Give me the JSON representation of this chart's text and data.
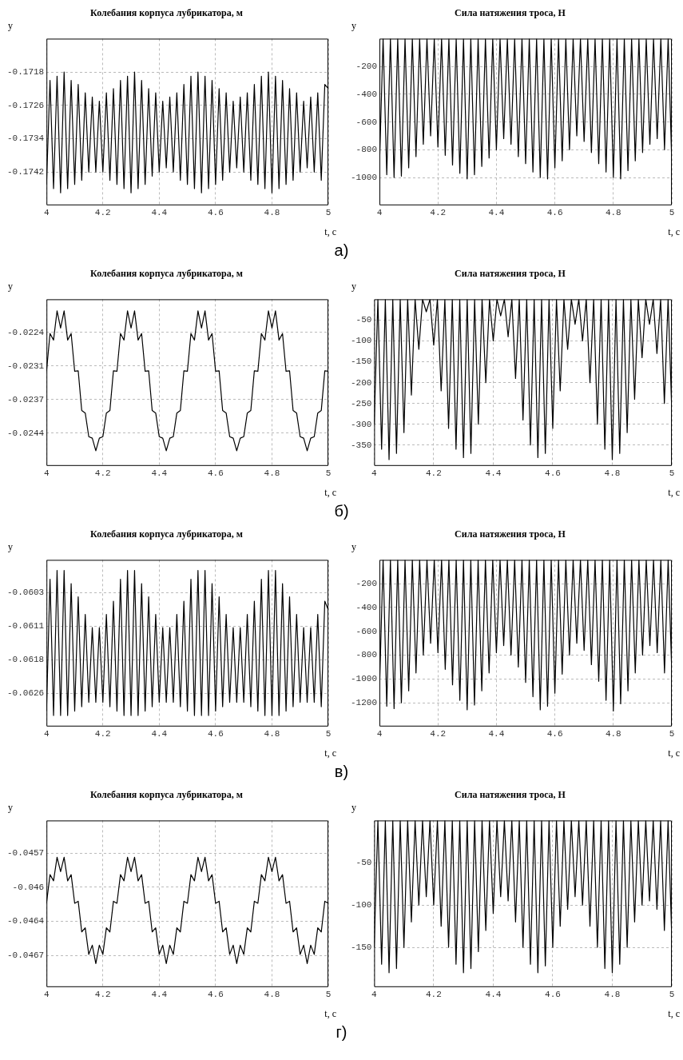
{
  "chart_data": [
    {
      "type": "line",
      "title": "Колебания корпуса лубрикатора, м",
      "xlabel": "t, с",
      "ylabel": "y",
      "annotations": [
        "а)"
      ],
      "grid": true,
      "x": [
        4,
        4.0125,
        4.025,
        4.0375,
        4.05,
        4.0625,
        4.075,
        4.0875,
        4.1,
        4.1125,
        4.125,
        4.1375,
        4.15,
        4.1625,
        4.175,
        4.1875,
        4.2,
        4.2125,
        4.225,
        4.2375,
        4.25,
        4.2625,
        4.275,
        4.2875,
        4.3,
        4.3125,
        4.325,
        4.3375,
        4.35,
        4.3625,
        4.375,
        4.3875,
        4.4,
        4.4125,
        4.425,
        4.4375,
        4.45,
        4.4625,
        4.475,
        4.4875,
        4.5,
        4.5125,
        4.525,
        4.5375,
        4.55,
        4.5625,
        4.575,
        4.5875,
        4.6,
        4.6125,
        4.625,
        4.6375,
        4.65,
        4.6625,
        4.675,
        4.6875,
        4.7,
        4.7125,
        4.725,
        4.7375,
        4.75,
        4.7625,
        4.775,
        4.7875,
        4.8,
        4.8125,
        4.825,
        4.8375,
        4.85,
        4.8625,
        4.875,
        4.8875,
        4.9,
        4.9125,
        4.925,
        4.9375,
        4.95,
        4.9625,
        4.975,
        4.9875,
        5
      ],
      "xlim": [
        4,
        5
      ],
      "xticks": [
        4,
        4.2,
        4.4,
        4.6,
        4.8,
        5
      ],
      "ylim": [
        -0.175,
        -0.171
      ],
      "yticks": [
        -0.1742,
        -0.1734,
        -0.1726,
        -0.1718
      ],
      "series": [
        {
          "color": "#000000",
          "values": [
            -0.1745,
            -0.172,
            -0.1746,
            -0.1719,
            -0.1747,
            -0.1718,
            -0.1746,
            -0.172,
            -0.1745,
            -0.1721,
            -0.1744,
            -0.1723,
            -0.1742,
            -0.1724,
            -0.1742,
            -0.1725,
            -0.1742,
            -0.1723,
            -0.1744,
            -0.1722,
            -0.1745,
            -0.172,
            -0.1746,
            -0.1719,
            -0.1747,
            -0.1718,
            -0.1746,
            -0.172,
            -0.1745,
            -0.1722,
            -0.1743,
            -0.1723,
            -0.1742,
            -0.1725,
            -0.1741,
            -0.1724,
            -0.1742,
            -0.1723,
            -0.1744,
            -0.1721,
            -0.1745,
            -0.1719,
            -0.1746,
            -0.1718,
            -0.1747,
            -0.1719,
            -0.1746,
            -0.172,
            -0.1745,
            -0.1722,
            -0.1744,
            -0.1723,
            -0.1742,
            -0.1725,
            -0.1741,
            -0.1724,
            -0.1742,
            -0.1723,
            -0.1744,
            -0.1721,
            -0.1745,
            -0.1719,
            -0.1746,
            -0.1718,
            -0.1747,
            -0.1719,
            -0.1746,
            -0.172,
            -0.1745,
            -0.1722,
            -0.1744,
            -0.1723,
            -0.1742,
            -0.1725,
            -0.1741,
            -0.1724,
            -0.1742,
            -0.1723,
            -0.1744,
            -0.1721,
            -0.1722
          ]
        }
      ]
    },
    {
      "type": "line",
      "title": "Сила натяжения троса, Н",
      "xlabel": "t, с",
      "ylabel": "y",
      "grid": true,
      "x": [
        4,
        4.0125,
        4.025,
        4.0375,
        4.05,
        4.0625,
        4.075,
        4.0875,
        4.1,
        4.1125,
        4.125,
        4.1375,
        4.15,
        4.1625,
        4.175,
        4.1875,
        4.2,
        4.2125,
        4.225,
        4.2375,
        4.25,
        4.2625,
        4.275,
        4.2875,
        4.3,
        4.3125,
        4.325,
        4.3375,
        4.35,
        4.3625,
        4.375,
        4.3875,
        4.4,
        4.4125,
        4.425,
        4.4375,
        4.45,
        4.4625,
        4.475,
        4.4875,
        4.5,
        4.5125,
        4.525,
        4.5375,
        4.55,
        4.5625,
        4.575,
        4.5875,
        4.6,
        4.6125,
        4.625,
        4.6375,
        4.65,
        4.6625,
        4.675,
        4.6875,
        4.7,
        4.7125,
        4.725,
        4.7375,
        4.75,
        4.7625,
        4.775,
        4.7875,
        4.8,
        4.8125,
        4.825,
        4.8375,
        4.85,
        4.8625,
        4.875,
        4.8875,
        4.9,
        4.9125,
        4.925,
        4.9375,
        4.95,
        4.9625,
        4.975,
        4.9875,
        5
      ],
      "xlim": [
        4,
        5
      ],
      "xticks": [
        4,
        4.2,
        4.4,
        4.6,
        4.8,
        5
      ],
      "ylim": [
        -1200,
        0
      ],
      "yticks": [
        -1000,
        -800,
        -600,
        -400,
        -200
      ],
      "series": [
        {
          "color": "#000000",
          "values": [
            -920,
            0,
            -980,
            0,
            -1000,
            0,
            -990,
            0,
            -930,
            0,
            -850,
            0,
            -760,
            0,
            -700,
            0,
            -780,
            0,
            -840,
            0,
            -910,
            0,
            -970,
            0,
            -1010,
            0,
            -980,
            0,
            -920,
            0,
            -860,
            0,
            -800,
            0,
            -720,
            0,
            -760,
            0,
            -850,
            0,
            -900,
            0,
            -960,
            0,
            -1000,
            0,
            -1010,
            0,
            -930,
            0,
            -880,
            0,
            -800,
            0,
            -700,
            0,
            -740,
            0,
            -820,
            0,
            -900,
            0,
            -960,
            0,
            -1000,
            0,
            -1010,
            0,
            -950,
            0,
            -880,
            0,
            -820,
            0,
            -760,
            0,
            -720,
            0,
            -800,
            0,
            -900
          ]
        }
      ]
    },
    {
      "type": "line",
      "title": "Колебания корпуса лубрикатора, м",
      "xlabel": "t, с",
      "ylabel": "y",
      "annotations": [
        "б)"
      ],
      "grid": true,
      "x": [
        4,
        4.0125,
        4.025,
        4.0375,
        4.05,
        4.0625,
        4.075,
        4.0875,
        4.1,
        4.1125,
        4.125,
        4.1375,
        4.15,
        4.1625,
        4.175,
        4.1875,
        4.2,
        4.2125,
        4.225,
        4.2375,
        4.25,
        4.2625,
        4.275,
        4.2875,
        4.3,
        4.3125,
        4.325,
        4.3375,
        4.35,
        4.3625,
        4.375,
        4.3875,
        4.4,
        4.4125,
        4.425,
        4.4375,
        4.45,
        4.4625,
        4.475,
        4.4875,
        4.5,
        4.5125,
        4.525,
        4.5375,
        4.55,
        4.5625,
        4.575,
        4.5875,
        4.6,
        4.6125,
        4.625,
        4.6375,
        4.65,
        4.6625,
        4.675,
        4.6875,
        4.7,
        4.7125,
        4.725,
        4.7375,
        4.75,
        4.7625,
        4.775,
        4.7875,
        4.8,
        4.8125,
        4.825,
        4.8375,
        4.85,
        4.8625,
        4.875,
        4.8875,
        4.9,
        4.9125,
        4.925,
        4.9375,
        4.95,
        4.9625,
        4.975,
        4.9875,
        5
      ],
      "xlim": [
        4,
        5
      ],
      "xticks": [
        4,
        4.2,
        4.4,
        4.6,
        4.8,
        5
      ],
      "ylim": [
        -0.02505,
        -0.02174
      ],
      "yticks": [
        {
          "value": -0.0244,
          "label": "-0.0244"
        },
        {
          "value": -0.023733,
          "label": "-0.0237"
        },
        {
          "value": -0.023067,
          "label": "-0.0231"
        },
        {
          "value": -0.0224,
          "label": "-0.0224"
        }
      ],
      "series": [
        {
          "color": "#000000",
          "values": [
            -0.02317,
            -0.02242,
            -0.02255,
            -0.02197,
            -0.02231,
            -0.02197,
            -0.02255,
            -0.02242,
            -0.02317,
            -0.02316,
            -0.02395,
            -0.024,
            -0.02447,
            -0.0245,
            -0.02475,
            -0.0245,
            -0.02447,
            -0.024,
            -0.02395,
            -0.02316,
            -0.02317,
            -0.02242,
            -0.02255,
            -0.02197,
            -0.02231,
            -0.02197,
            -0.02255,
            -0.02242,
            -0.02317,
            -0.02316,
            -0.02395,
            -0.024,
            -0.02447,
            -0.0245,
            -0.02475,
            -0.0245,
            -0.02447,
            -0.024,
            -0.02395,
            -0.02316,
            -0.02317,
            -0.02242,
            -0.02255,
            -0.02197,
            -0.02231,
            -0.02197,
            -0.02255,
            -0.02242,
            -0.02317,
            -0.02316,
            -0.02395,
            -0.024,
            -0.02447,
            -0.0245,
            -0.02475,
            -0.0245,
            -0.02447,
            -0.024,
            -0.02395,
            -0.02316,
            -0.02317,
            -0.02242,
            -0.02255,
            -0.02197,
            -0.02231,
            -0.02197,
            -0.02255,
            -0.02242,
            -0.02317,
            -0.02316,
            -0.02395,
            -0.024,
            -0.02447,
            -0.0245,
            -0.02475,
            -0.0245,
            -0.02447,
            -0.024,
            -0.02395,
            -0.02316,
            -0.02317
          ]
        }
      ]
    },
    {
      "type": "line",
      "title": "Сила натяжения троса, Н",
      "xlabel": "t, с",
      "ylabel": "y",
      "grid": true,
      "x": [
        4,
        4.0125,
        4.025,
        4.0375,
        4.05,
        4.0625,
        4.075,
        4.0875,
        4.1,
        4.1125,
        4.125,
        4.1375,
        4.15,
        4.1625,
        4.175,
        4.1875,
        4.2,
        4.2125,
        4.225,
        4.2375,
        4.25,
        4.2625,
        4.275,
        4.2875,
        4.3,
        4.3125,
        4.325,
        4.3375,
        4.35,
        4.3625,
        4.375,
        4.3875,
        4.4,
        4.4125,
        4.425,
        4.4375,
        4.45,
        4.4625,
        4.475,
        4.4875,
        4.5,
        4.5125,
        4.525,
        4.5375,
        4.55,
        4.5625,
        4.575,
        4.5875,
        4.6,
        4.6125,
        4.625,
        4.6375,
        4.65,
        4.6625,
        4.675,
        4.6875,
        4.7,
        4.7125,
        4.725,
        4.7375,
        4.75,
        4.7625,
        4.775,
        4.7875,
        4.8,
        4.8125,
        4.825,
        4.8375,
        4.85,
        4.8625,
        4.875,
        4.8875,
        4.9,
        4.9125,
        4.925,
        4.9375,
        4.95,
        4.9625,
        4.975,
        4.9875,
        5
      ],
      "xlim": [
        4,
        5
      ],
      "xticks": [
        4,
        4.2,
        4.4,
        4.6,
        4.8,
        5
      ],
      "ylim": [
        -400,
        0
      ],
      "yticks": [
        -350,
        -300,
        -250,
        -200,
        -150,
        -100,
        -50
      ],
      "series": [
        {
          "color": "#000000",
          "values": [
            -300,
            0,
            -360,
            0,
            -385,
            0,
            -370,
            0,
            -320,
            0,
            -230,
            0,
            -120,
            0,
            -30,
            0,
            -110,
            0,
            -220,
            0,
            -310,
            0,
            -360,
            0,
            -380,
            0,
            -370,
            0,
            -300,
            0,
            -200,
            0,
            -100,
            0,
            -40,
            0,
            -90,
            0,
            -190,
            0,
            -290,
            0,
            -350,
            0,
            -380,
            0,
            -370,
            0,
            -310,
            0,
            -220,
            0,
            -120,
            0,
            -60,
            0,
            -100,
            0,
            -200,
            0,
            -300,
            0,
            -360,
            0,
            -385,
            0,
            -370,
            0,
            -320,
            0,
            -240,
            0,
            -140,
            0,
            -60,
            0,
            -130,
            0,
            -250,
            0,
            -270
          ]
        }
      ]
    },
    {
      "type": "line",
      "title": "Колебания корпуса лубрикатора, м",
      "xlabel": "t, с",
      "ylabel": "y",
      "annotations": [
        "в)"
      ],
      "grid": true,
      "x": [
        4,
        4.0125,
        4.025,
        4.0375,
        4.05,
        4.0625,
        4.075,
        4.0875,
        4.1,
        4.1125,
        4.125,
        4.1375,
        4.15,
        4.1625,
        4.175,
        4.1875,
        4.2,
        4.2125,
        4.225,
        4.2375,
        4.25,
        4.2625,
        4.275,
        4.2875,
        4.3,
        4.3125,
        4.325,
        4.3375,
        4.35,
        4.3625,
        4.375,
        4.3875,
        4.4,
        4.4125,
        4.425,
        4.4375,
        4.45,
        4.4625,
        4.475,
        4.4875,
        4.5,
        4.5125,
        4.525,
        4.5375,
        4.55,
        4.5625,
        4.575,
        4.5875,
        4.6,
        4.6125,
        4.625,
        4.6375,
        4.65,
        4.6625,
        4.675,
        4.6875,
        4.7,
        4.7125,
        4.725,
        4.7375,
        4.75,
        4.7625,
        4.775,
        4.7875,
        4.8,
        4.8125,
        4.825,
        4.8375,
        4.85,
        4.8625,
        4.875,
        4.8875,
        4.9,
        4.9125,
        4.925,
        4.9375,
        4.95,
        4.9625,
        4.975,
        4.9875,
        5
      ],
      "xlim": [
        4,
        5
      ],
      "xticks": [
        4,
        4.2,
        4.4,
        4.6,
        4.8,
        5
      ],
      "ylim": [
        -0.06335,
        -0.05956
      ],
      "yticks": [
        {
          "value": -0.0626,
          "label": "-0.0626"
        },
        {
          "value": -0.061833,
          "label": "-0.0618"
        },
        {
          "value": -0.061067,
          "label": "-0.0611"
        },
        {
          "value": -0.0603,
          "label": "-0.0603"
        }
      ],
      "series": [
        {
          "color": "#000000",
          "values": [
            -0.063,
            -0.06,
            -0.0631,
            -0.0598,
            -0.0631,
            -0.0598,
            -0.0631,
            -0.0601,
            -0.063,
            -0.0604,
            -0.0629,
            -0.0608,
            -0.0628,
            -0.0611,
            -0.0628,
            -0.0611,
            -0.0628,
            -0.0608,
            -0.0629,
            -0.0605,
            -0.063,
            -0.06,
            -0.0631,
            -0.0598,
            -0.0631,
            -0.0598,
            -0.0631,
            -0.0601,
            -0.063,
            -0.0604,
            -0.0629,
            -0.0608,
            -0.0628,
            -0.0611,
            -0.0628,
            -0.0611,
            -0.0628,
            -0.0608,
            -0.0629,
            -0.0605,
            -0.063,
            -0.06,
            -0.0631,
            -0.0598,
            -0.0631,
            -0.0598,
            -0.0631,
            -0.0601,
            -0.063,
            -0.0604,
            -0.0629,
            -0.0608,
            -0.0628,
            -0.0611,
            -0.0628,
            -0.0611,
            -0.0628,
            -0.0608,
            -0.0629,
            -0.0605,
            -0.063,
            -0.06,
            -0.0631,
            -0.0598,
            -0.0631,
            -0.0598,
            -0.0631,
            -0.0601,
            -0.063,
            -0.0604,
            -0.0629,
            -0.0608,
            -0.0628,
            -0.0611,
            -0.0628,
            -0.0611,
            -0.0628,
            -0.0608,
            -0.0629,
            -0.0605,
            -0.0607
          ]
        }
      ]
    },
    {
      "type": "line",
      "title": "Сила натяжения троса, Н",
      "xlabel": "t, с",
      "ylabel": "y",
      "grid": true,
      "x": [
        4,
        4.0125,
        4.025,
        4.0375,
        4.05,
        4.0625,
        4.075,
        4.0875,
        4.1,
        4.1125,
        4.125,
        4.1375,
        4.15,
        4.1625,
        4.175,
        4.1875,
        4.2,
        4.2125,
        4.225,
        4.2375,
        4.25,
        4.2625,
        4.275,
        4.2875,
        4.3,
        4.3125,
        4.325,
        4.3375,
        4.35,
        4.3625,
        4.375,
        4.3875,
        4.4,
        4.4125,
        4.425,
        4.4375,
        4.45,
        4.4625,
        4.475,
        4.4875,
        4.5,
        4.5125,
        4.525,
        4.5375,
        4.55,
        4.5625,
        4.575,
        4.5875,
        4.6,
        4.6125,
        4.625,
        4.6375,
        4.65,
        4.6625,
        4.675,
        4.6875,
        4.7,
        4.7125,
        4.725,
        4.7375,
        4.75,
        4.7625,
        4.775,
        4.7875,
        4.8,
        4.8125,
        4.825,
        4.8375,
        4.85,
        4.8625,
        4.875,
        4.8875,
        4.9,
        4.9125,
        4.925,
        4.9375,
        4.95,
        4.9625,
        4.975,
        4.9875,
        5
      ],
      "xlim": [
        4,
        5
      ],
      "xticks": [
        4,
        4.2,
        4.4,
        4.6,
        4.8,
        5
      ],
      "ylim": [
        -1400,
        0
      ],
      "yticks": [
        -1200,
        -1000,
        -800,
        -600,
        -400,
        -200
      ],
      "series": [
        {
          "color": "#000000",
          "values": [
            -1100,
            0,
            -1230,
            0,
            -1250,
            0,
            -1200,
            0,
            -1100,
            0,
            -950,
            0,
            -800,
            0,
            -700,
            0,
            -780,
            0,
            -920,
            0,
            -1050,
            0,
            -1180,
            0,
            -1260,
            0,
            -1220,
            0,
            -1100,
            0,
            -950,
            0,
            -780,
            0,
            -720,
            0,
            -800,
            0,
            -900,
            0,
            -1030,
            0,
            -1150,
            0,
            -1260,
            0,
            -1230,
            0,
            -1120,
            0,
            -960,
            0,
            -800,
            0,
            -700,
            0,
            -760,
            0,
            -880,
            0,
            -1020,
            0,
            -1180,
            0,
            -1270,
            0,
            -1210,
            0,
            -1100,
            0,
            -950,
            0,
            -800,
            0,
            -720,
            0,
            -780,
            0,
            -950,
            0,
            -950
          ]
        }
      ]
    },
    {
      "type": "line",
      "title": "Колебания корпуса лубрикатора, м",
      "xlabel": "t, с",
      "ylabel": "y",
      "annotations": [
        "г)"
      ],
      "grid": true,
      "x": [
        4,
        4.0125,
        4.025,
        4.0375,
        4.05,
        4.0625,
        4.075,
        4.0875,
        4.1,
        4.1125,
        4.125,
        4.1375,
        4.15,
        4.1625,
        4.175,
        4.1875,
        4.2,
        4.2125,
        4.225,
        4.2375,
        4.25,
        4.2625,
        4.275,
        4.2875,
        4.3,
        4.3125,
        4.325,
        4.3375,
        4.35,
        4.3625,
        4.375,
        4.3875,
        4.4,
        4.4125,
        4.425,
        4.4375,
        4.45,
        4.4625,
        4.475,
        4.4875,
        4.5,
        4.5125,
        4.525,
        4.5375,
        4.55,
        4.5625,
        4.575,
        4.5875,
        4.6,
        4.6125,
        4.625,
        4.6375,
        4.65,
        4.6625,
        4.675,
        4.6875,
        4.7,
        4.7125,
        4.725,
        4.7375,
        4.75,
        4.7625,
        4.775,
        4.7875,
        4.8,
        4.8125,
        4.825,
        4.8375,
        4.85,
        4.8625,
        4.875,
        4.8875,
        4.9,
        4.9125,
        4.925,
        4.9375,
        4.95,
        4.9625,
        4.975,
        4.9875,
        5
      ],
      "xlim": [
        4,
        5
      ],
      "xticks": [
        4,
        4.2,
        4.4,
        4.6,
        4.8,
        5
      ],
      "ylim": [
        -0.04701,
        -0.04538
      ],
      "yticks": [
        {
          "value": -0.0467,
          "label": "-0.0467"
        },
        {
          "value": -0.046367,
          "label": "-0.0464"
        },
        {
          "value": -0.046033,
          "label": "-0.046"
        },
        {
          "value": -0.0457,
          "label": "-0.0457"
        }
      ],
      "series": [
        {
          "color": "#000000",
          "values": [
            -0.04619,
            -0.04591,
            -0.04597,
            -0.04574,
            -0.04588,
            -0.04574,
            -0.04597,
            -0.04591,
            -0.04619,
            -0.04617,
            -0.04647,
            -0.04643,
            -0.04669,
            -0.0466,
            -0.04678,
            -0.0466,
            -0.04669,
            -0.04643,
            -0.04647,
            -0.04617,
            -0.04619,
            -0.04591,
            -0.04597,
            -0.04574,
            -0.04588,
            -0.04574,
            -0.04597,
            -0.04591,
            -0.04619,
            -0.04617,
            -0.04647,
            -0.04643,
            -0.04669,
            -0.0466,
            -0.04678,
            -0.0466,
            -0.04669,
            -0.04643,
            -0.04647,
            -0.04617,
            -0.04619,
            -0.04591,
            -0.04597,
            -0.04574,
            -0.04588,
            -0.04574,
            -0.04597,
            -0.04591,
            -0.04619,
            -0.04617,
            -0.04647,
            -0.04643,
            -0.04669,
            -0.0466,
            -0.04678,
            -0.0466,
            -0.04669,
            -0.04643,
            -0.04647,
            -0.04617,
            -0.04619,
            -0.04591,
            -0.04597,
            -0.04574,
            -0.04588,
            -0.04574,
            -0.04597,
            -0.04591,
            -0.04619,
            -0.04617,
            -0.04647,
            -0.04643,
            -0.04669,
            -0.0466,
            -0.04678,
            -0.0466,
            -0.04669,
            -0.04643,
            -0.04647,
            -0.04617,
            -0.04619
          ]
        }
      ]
    },
    {
      "type": "line",
      "title": "Сила натяжения троса, Н",
      "xlabel": "t, с",
      "ylabel": "y",
      "grid": true,
      "x": [
        4,
        4.0125,
        4.025,
        4.0375,
        4.05,
        4.0625,
        4.075,
        4.0875,
        4.1,
        4.1125,
        4.125,
        4.1375,
        4.15,
        4.1625,
        4.175,
        4.1875,
        4.2,
        4.2125,
        4.225,
        4.2375,
        4.25,
        4.2625,
        4.275,
        4.2875,
        4.3,
        4.3125,
        4.325,
        4.3375,
        4.35,
        4.3625,
        4.375,
        4.3875,
        4.4,
        4.4125,
        4.425,
        4.4375,
        4.45,
        4.4625,
        4.475,
        4.4875,
        4.5,
        4.5125,
        4.525,
        4.5375,
        4.55,
        4.5625,
        4.575,
        4.5875,
        4.6,
        4.6125,
        4.625,
        4.6375,
        4.65,
        4.6625,
        4.675,
        4.6875,
        4.7,
        4.7125,
        4.725,
        4.7375,
        4.75,
        4.7625,
        4.775,
        4.7875,
        4.8,
        4.8125,
        4.825,
        4.8375,
        4.85,
        4.8625,
        4.875,
        4.8875,
        4.9,
        4.9125,
        4.925,
        4.9375,
        4.95,
        4.9625,
        4.975,
        4.9875,
        5
      ],
      "xlim": [
        4,
        5
      ],
      "xticks": [
        4,
        4.2,
        4.4,
        4.6,
        4.8,
        5
      ],
      "ylim": [
        -197,
        0
      ],
      "yticks": [
        -150,
        -100,
        -50
      ],
      "series": [
        {
          "color": "#000000",
          "values": [
            -150,
            0,
            -170,
            0,
            -180,
            0,
            -175,
            0,
            -150,
            0,
            -120,
            0,
            -100,
            0,
            -90,
            0,
            -100,
            0,
            -125,
            0,
            -150,
            0,
            -170,
            0,
            -180,
            0,
            -175,
            0,
            -155,
            0,
            -130,
            0,
            -110,
            0,
            -90,
            0,
            -95,
            0,
            -120,
            0,
            -150,
            0,
            -170,
            0,
            -180,
            0,
            -172,
            0,
            -150,
            0,
            -125,
            0,
            -105,
            0,
            -90,
            0,
            -100,
            0,
            -125,
            0,
            -150,
            0,
            -175,
            0,
            -180,
            0,
            -170,
            0,
            -150,
            0,
            -120,
            0,
            -100,
            0,
            -95,
            0,
            -105,
            0,
            -130,
            0,
            -140
          ]
        }
      ]
    }
  ]
}
